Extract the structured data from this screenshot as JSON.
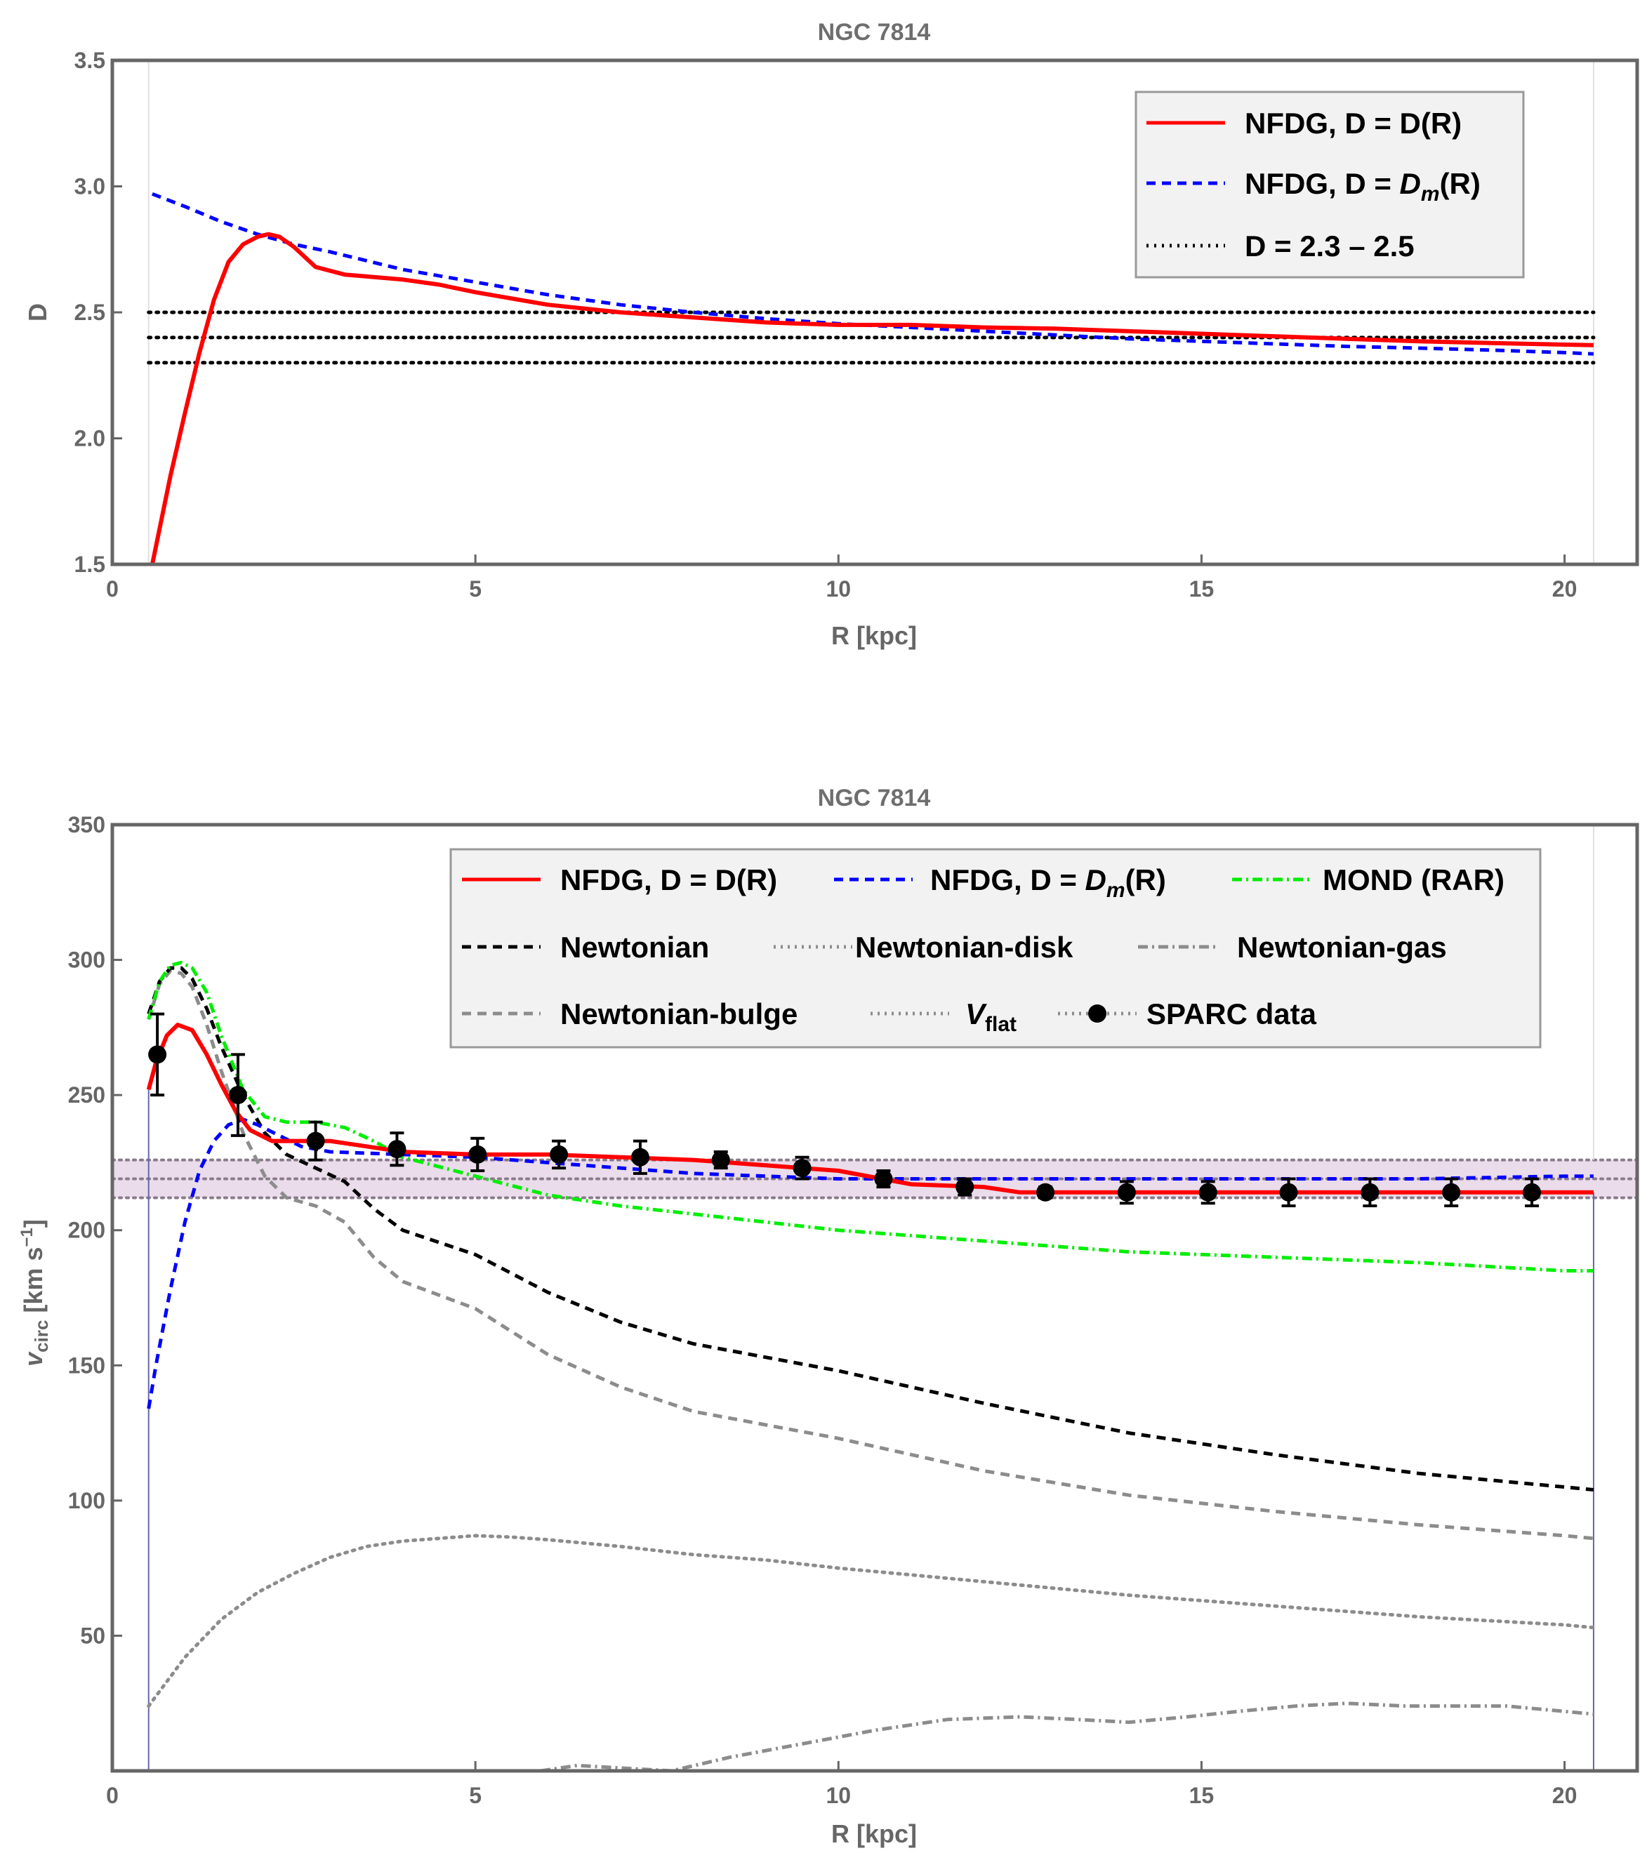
{
  "chart_data": [
    {
      "type": "line",
      "title": "NGC 7814",
      "xlabel": "R [kpc]",
      "ylabel": "D",
      "xlim": [
        0,
        21
      ],
      "ylim": [
        1.5,
        3.5
      ],
      "xticks": [
        0,
        5,
        10,
        15,
        20
      ],
      "xtick_labels": [
        "0",
        "5",
        "10",
        "15",
        "20"
      ],
      "yticks": [
        1.5,
        2.0,
        2.5,
        3.0,
        3.5
      ],
      "ytick_labels": [
        "1.5",
        "2.0",
        "2.5",
        "3.0",
        "3.5"
      ],
      "data_range_x": [
        0.5,
        20.4
      ],
      "legend_position": "top-right",
      "series": [
        {
          "name": "NFDG, D = D(R)",
          "color": "#ff0000",
          "style": "solid",
          "x": [
            0.55,
            0.8,
            1.0,
            1.2,
            1.4,
            1.6,
            1.8,
            2.0,
            2.15,
            2.3,
            2.5,
            2.8,
            3.2,
            3.6,
            4.0,
            4.5,
            5.0,
            6.0,
            7.0,
            8.0,
            9.0,
            10.0,
            11.0,
            12.0,
            13.0,
            14.0,
            15.0,
            16.0,
            17.0,
            18.0,
            19.0,
            20.0,
            20.4
          ],
          "y": [
            1.5,
            1.85,
            2.1,
            2.34,
            2.55,
            2.7,
            2.77,
            2.8,
            2.81,
            2.8,
            2.76,
            2.68,
            2.65,
            2.64,
            2.63,
            2.61,
            2.58,
            2.53,
            2.5,
            2.48,
            2.46,
            2.45,
            2.45,
            2.44,
            2.435,
            2.425,
            2.415,
            2.405,
            2.395,
            2.385,
            2.378,
            2.372,
            2.37
          ]
        },
        {
          "name": "NFDG, D = Dm(R)",
          "legend_main": "NFDG, D = ",
          "legend_italic": "D",
          "legend_sub": "m",
          "legend_tail": "(R)",
          "color": "#0000ff",
          "style": "dashed",
          "x": [
            0.55,
            1.0,
            1.5,
            2.0,
            2.5,
            3.0,
            4.0,
            5.0,
            6.0,
            7.0,
            8.0,
            9.0,
            10.0,
            11.0,
            12.0,
            13.0,
            14.0,
            15.0,
            16.0,
            17.0,
            18.0,
            19.0,
            20.0,
            20.4
          ],
          "y": [
            2.97,
            2.92,
            2.86,
            2.81,
            2.77,
            2.74,
            2.67,
            2.62,
            2.57,
            2.53,
            2.5,
            2.475,
            2.455,
            2.44,
            2.425,
            2.41,
            2.395,
            2.385,
            2.375,
            2.365,
            2.358,
            2.35,
            2.34,
            2.335
          ]
        },
        {
          "name": "D = 2.3 – 2.5",
          "color": "#000000",
          "style": "dotted",
          "hlines": [
            2.3,
            2.4,
            2.5
          ]
        }
      ]
    },
    {
      "type": "line",
      "title": "NGC 7814",
      "xlabel": "R [kpc]",
      "ylabel_main": "v",
      "ylabel_sub": "circ",
      "ylabel_units": " [km s",
      "ylabel_sup": "−1",
      "ylabel_close": "]",
      "xlim": [
        0,
        21
      ],
      "ylim": [
        0,
        350
      ],
      "xticks": [
        0,
        5,
        10,
        15,
        20
      ],
      "xtick_labels": [
        "0",
        "5",
        "10",
        "15",
        "20"
      ],
      "yticks": [
        50,
        100,
        150,
        200,
        250,
        300,
        350
      ],
      "ytick_labels": [
        "50",
        "100",
        "150",
        "200",
        "250",
        "300",
        "350"
      ],
      "vflat_band": [
        212,
        226
      ],
      "vflat_line": 219,
      "legend_position": "top-right",
      "series": [
        {
          "name": "NFDG, D = D(R)",
          "color": "#ff0000",
          "style": "solid",
          "x": [
            0.5,
            0.6,
            0.75,
            0.9,
            1.1,
            1.3,
            1.5,
            1.7,
            1.9,
            2.2,
            2.6,
            3.0,
            3.5,
            4.0,
            5.0,
            6.0,
            7.0,
            8.0,
            9.0,
            10.0,
            10.6,
            11.0,
            12.0,
            12.5,
            13.0,
            14.0,
            15.0,
            16.0,
            17.0,
            18.0,
            19.0,
            20.0,
            20.4
          ],
          "y": [
            252,
            262,
            272,
            276,
            274,
            265,
            254,
            244,
            237,
            233,
            233,
            233,
            231,
            229,
            228,
            228,
            227,
            226,
            224,
            222,
            219,
            217,
            216,
            214,
            214,
            214,
            214,
            214,
            214,
            214,
            214,
            214,
            214
          ]
        },
        {
          "name": "NFDG, D = Dm(R)",
          "legend_main": "NFDG, D = ",
          "legend_italic": "D",
          "legend_sub": "m",
          "legend_tail": "(R)",
          "color": "#0000ff",
          "style": "dashed",
          "x": [
            0.5,
            0.6,
            0.8,
            1.0,
            1.2,
            1.4,
            1.6,
            1.8,
            2.0,
            2.3,
            2.6,
            3.0,
            4.0,
            5.0,
            6.0,
            7.0,
            8.0,
            9.0,
            10.0,
            12.0,
            14.0,
            16.0,
            18.0,
            20.0,
            20.4
          ],
          "y": [
            134,
            150,
            178,
            203,
            222,
            233,
            239,
            241,
            239,
            235,
            231,
            229,
            228,
            227,
            225,
            223,
            221,
            220,
            219,
            219,
            219,
            219,
            219,
            220,
            220
          ]
        },
        {
          "name": "MOND (RAR)",
          "color": "#00ee00",
          "style": "dashdot",
          "x": [
            0.5,
            0.65,
            0.8,
            0.95,
            1.1,
            1.3,
            1.5,
            1.8,
            2.1,
            2.4,
            2.8,
            3.2,
            3.6,
            4.0,
            5.0,
            6.0,
            7.0,
            8.0,
            10.0,
            12.0,
            14.0,
            16.0,
            18.0,
            20.0,
            20.4
          ],
          "y": [
            278,
            292,
            298,
            299,
            297,
            288,
            272,
            252,
            242,
            240,
            240,
            238,
            233,
            227,
            220,
            213,
            209,
            206,
            200,
            196,
            192,
            190,
            188,
            185,
            185
          ]
        },
        {
          "name": "Newtonian",
          "color": "#000000",
          "style": "dashed",
          "x": [
            0.5,
            0.65,
            0.8,
            0.95,
            1.1,
            1.3,
            1.5,
            1.8,
            2.1,
            2.4,
            2.8,
            3.2,
            3.6,
            4.0,
            5.0,
            6.0,
            7.0,
            8.0,
            10.0,
            12.0,
            14.0,
            16.0,
            18.0,
            20.0,
            20.4
          ],
          "y": [
            280,
            292,
            297,
            297,
            293,
            282,
            268,
            250,
            236,
            228,
            223,
            218,
            208,
            200,
            191,
            177,
            166,
            158,
            148,
            136,
            125,
            117,
            110,
            105,
            104
          ]
        },
        {
          "name": "Newtonian-disk",
          "color": "#8c8c8c",
          "style": "dotted",
          "x": [
            0.5,
            1.0,
            1.5,
            2.0,
            2.5,
            3.0,
            3.5,
            4.0,
            4.5,
            5.0,
            5.5,
            6.0,
            7.0,
            8.0,
            9.0,
            10.0,
            12.0,
            14.0,
            16.0,
            18.0,
            20.0,
            20.4
          ],
          "y": [
            24,
            42,
            56,
            66,
            73,
            79,
            83,
            85,
            86,
            87,
            86.5,
            85.5,
            83,
            80,
            78,
            75,
            70,
            65,
            61,
            57,
            54,
            53
          ]
        },
        {
          "name": "Newtonian-gas",
          "color": "#8c8c8c",
          "style": "dashdot",
          "x": [
            5.9,
            6.4,
            7.7,
            8.5,
            9.5,
            10.5,
            11.5,
            12.5,
            13.3,
            14.0,
            14.8,
            15.5,
            16.3,
            17.0,
            17.8,
            18.5,
            19.2,
            20.0,
            20.4
          ],
          "y": [
            0,
            2,
            0,
            5,
            10,
            15,
            19,
            20,
            19,
            18,
            20,
            22,
            24,
            25,
            24,
            24,
            24,
            22,
            21
          ]
        },
        {
          "name": "Newtonian-bulge",
          "color": "#8c8c8c",
          "style": "dashed",
          "x": [
            0.5,
            0.65,
            0.8,
            0.95,
            1.1,
            1.3,
            1.5,
            1.8,
            2.1,
            2.4,
            2.8,
            3.2,
            3.6,
            4.0,
            5.0,
            6.0,
            7.0,
            8.0,
            10.0,
            12.0,
            14.0,
            16.0,
            18.0,
            20.0,
            20.4
          ],
          "y": [
            278,
            291,
            296,
            295,
            290,
            276,
            259,
            236,
            220,
            212,
            209,
            203,
            190,
            181,
            171,
            154,
            142,
            133,
            123,
            111,
            102,
            96,
            91,
            87,
            86
          ]
        },
        {
          "name": "Vflat",
          "legend_italic": "V",
          "legend_sub": "flat",
          "color": "#8c8c8c",
          "style": "dotted",
          "hline": 219
        },
        {
          "name": "SPARC data",
          "color": "#000000",
          "style": "points",
          "x": [
            0.62,
            1.73,
            2.8,
            3.92,
            5.03,
            6.15,
            7.27,
            8.38,
            9.5,
            10.62,
            11.74,
            12.85,
            13.97,
            15.09,
            16.2,
            17.32,
            18.44,
            19.55
          ],
          "y": [
            265,
            250,
            233,
            230,
            228,
            228,
            227,
            226,
            223,
            219,
            216,
            214,
            214,
            214,
            214,
            214,
            214,
            214
          ],
          "err": [
            15,
            15,
            7,
            6,
            6,
            5,
            6,
            3,
            4,
            3,
            3,
            2,
            4,
            4,
            5,
            5,
            5,
            5
          ]
        }
      ]
    }
  ]
}
